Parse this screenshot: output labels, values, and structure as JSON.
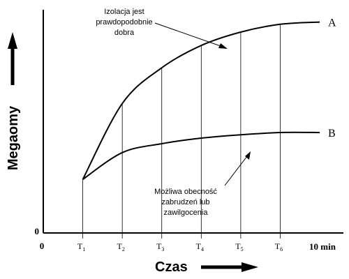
{
  "chart_data": {
    "type": "line",
    "xlabel": "Czas",
    "ylabel": "Megaomy",
    "x_origin_label": "0",
    "y_origin_label": "0",
    "x_end_label": "10 min",
    "x_ticks": [
      {
        "base": "T",
        "sub": "1",
        "x": 1
      },
      {
        "base": "T",
        "sub": "2",
        "x": 2
      },
      {
        "base": "T",
        "sub": "3",
        "x": 3
      },
      {
        "base": "T",
        "sub": "4",
        "x": 4
      },
      {
        "base": "T",
        "sub": "5",
        "x": 5
      },
      {
        "base": "T",
        "sub": "6",
        "x": 6
      }
    ],
    "xlim": [
      0,
      7.6
    ],
    "ylim": [
      0,
      100
    ],
    "grid": "vertical lines at T1–T6",
    "series": [
      {
        "name": "A",
        "x": [
          1,
          2,
          3,
          4,
          5,
          6,
          7
        ],
        "y": [
          24,
          58,
          74,
          84,
          90,
          93.5,
          94.5
        ]
      },
      {
        "name": "B",
        "x": [
          1,
          2,
          3,
          4,
          5,
          6,
          7
        ],
        "y": [
          24,
          36,
          40,
          42.5,
          44,
          45,
          45
        ]
      }
    ],
    "annotations": [
      {
        "text": [
          "Izolacja jest",
          "prawdopodobnie",
          "dobra"
        ],
        "points_to": "A"
      },
      {
        "text": [
          "Możliwa obecność",
          "zabrudzeń lub",
          "zawilgocenia"
        ],
        "points_to": "B"
      }
    ]
  }
}
